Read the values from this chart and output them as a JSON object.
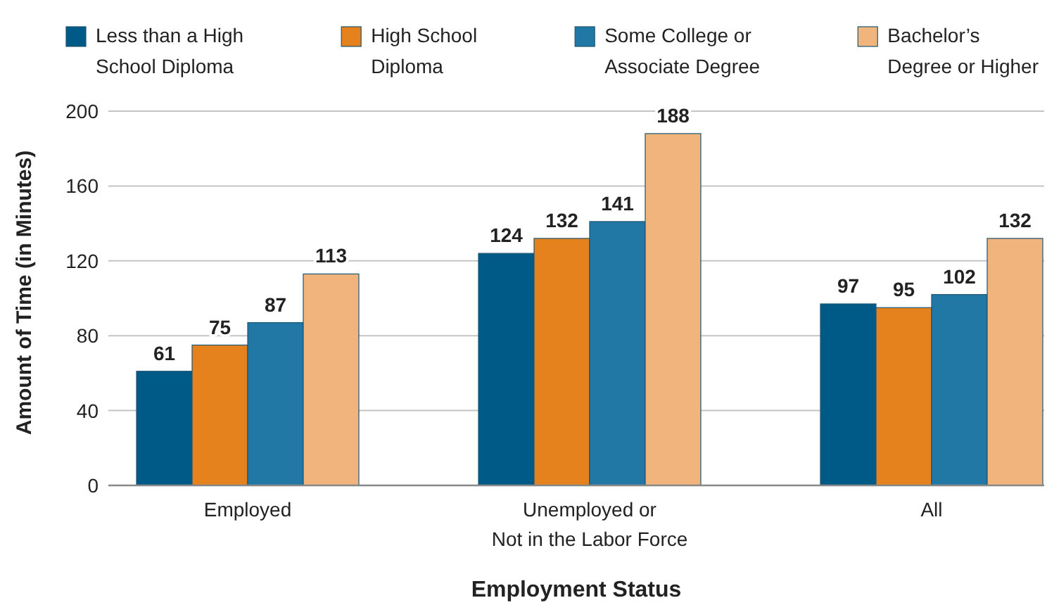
{
  "chart_data": {
    "type": "bar",
    "xlabel": "Employment Status",
    "ylabel": "Amount of Time (in Minutes)",
    "categories": [
      "Employed",
      "Unemployed or\nNot in the Labor Force",
      "All"
    ],
    "series": [
      {
        "name": "Less than a High\nSchool Diploma",
        "color": "#005a87",
        "values": [
          61,
          124,
          97
        ]
      },
      {
        "name": "High School\nDiploma",
        "color": "#e6821e",
        "values": [
          75,
          132,
          95
        ]
      },
      {
        "name": "Some College or\nAssociate Degree",
        "color": "#2278a4",
        "values": [
          87,
          141,
          102
        ]
      },
      {
        "name": "Bachelor’s\nDegree or Higher",
        "color": "#f0b47c",
        "values": [
          113,
          188,
          132
        ]
      }
    ],
    "ylim": [
      0,
      200
    ],
    "yticks": [
      0,
      40,
      80,
      120,
      160,
      200
    ],
    "grid": "y",
    "legend": "top",
    "data_labels": true
  }
}
